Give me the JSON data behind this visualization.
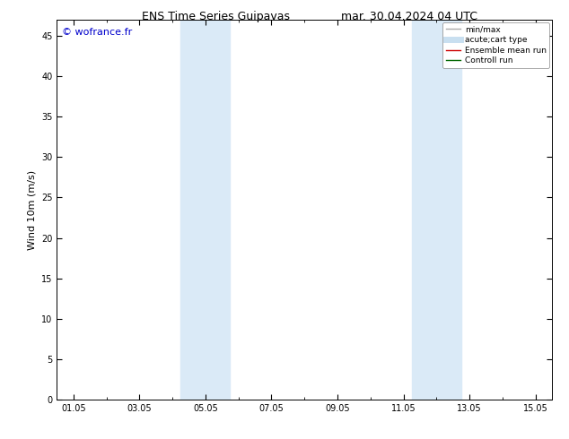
{
  "title_left": "ENS Time Series Guipavas",
  "title_right": "mar. 30.04.2024 04 UTC",
  "ylabel": "Wind 10m (m/s)",
  "watermark": "© wofrance.fr",
  "watermark_color": "#0000cc",
  "background_color": "#ffffff",
  "plot_bg_color": "#ffffff",
  "shaded_regions": [
    {
      "xstart": 4.25,
      "xend": 5.75,
      "color": "#daeaf7"
    },
    {
      "xstart": 11.25,
      "xend": 12.75,
      "color": "#daeaf7"
    }
  ],
  "yticks": [
    0,
    5,
    10,
    15,
    20,
    25,
    30,
    35,
    40,
    45
  ],
  "ymax": 47,
  "xtick_labels": [
    "01.05",
    "03.05",
    "05.05",
    "07.05",
    "09.05",
    "11.05",
    "13.05",
    "15.05"
  ],
  "xtick_positions": [
    1,
    3,
    5,
    7,
    9,
    11,
    13,
    15
  ],
  "xmin": 0.5,
  "xmax": 15.5,
  "legend_entries": [
    {
      "label": "min/max",
      "color": "#aaaaaa",
      "linestyle": "-",
      "linewidth": 1.0
    },
    {
      "label": "acute;cart type",
      "color": "#c8dff0",
      "linestyle": "-",
      "linewidth": 5
    },
    {
      "label": "Ensemble mean run",
      "color": "#cc0000",
      "linestyle": "-",
      "linewidth": 1.0
    },
    {
      "label": "Controll run",
      "color": "#006600",
      "linestyle": "-",
      "linewidth": 1.0
    }
  ],
  "title_fontsize": 9,
  "tick_fontsize": 7,
  "ylabel_fontsize": 8,
  "watermark_fontsize": 8,
  "legend_fontsize": 6.5
}
